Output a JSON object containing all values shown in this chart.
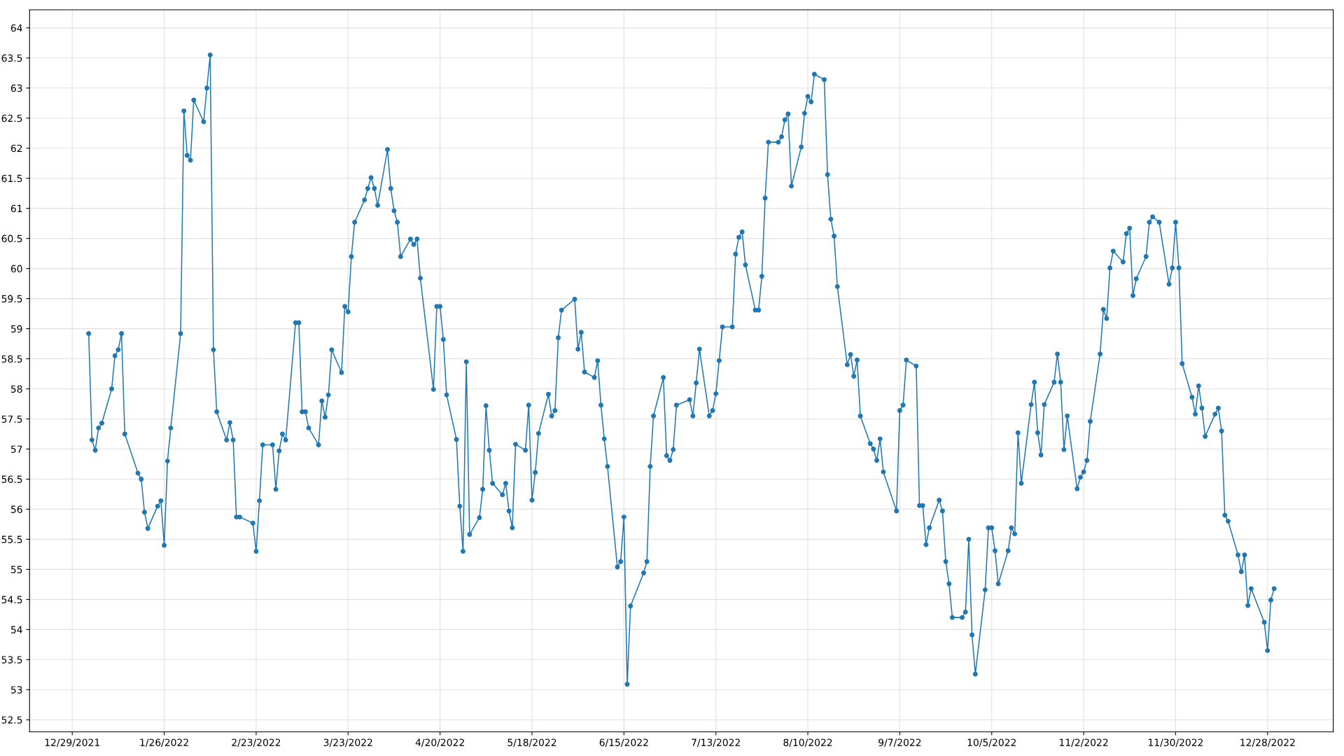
{
  "chart_data": {
    "type": "line",
    "xlim": [
      "2021-12-16",
      "2023-01-17"
    ],
    "ylim": [
      52.3,
      64.3
    ],
    "xticks": [
      {
        "value": "2021-12-29",
        "label": "12/29/2021"
      },
      {
        "value": "2022-01-26",
        "label": "1/26/2022"
      },
      {
        "value": "2022-02-23",
        "label": "2/23/2022"
      },
      {
        "value": "2022-03-23",
        "label": "3/23/2022"
      },
      {
        "value": "2022-04-20",
        "label": "4/20/2022"
      },
      {
        "value": "2022-05-18",
        "label": "5/18/2022"
      },
      {
        "value": "2022-06-15",
        "label": "6/15/2022"
      },
      {
        "value": "2022-07-13",
        "label": "7/13/2022"
      },
      {
        "value": "2022-08-10",
        "label": "8/10/2022"
      },
      {
        "value": "2022-09-07",
        "label": "9/7/2022"
      },
      {
        "value": "2022-10-05",
        "label": "10/5/2022"
      },
      {
        "value": "2022-11-02",
        "label": "11/2/2022"
      },
      {
        "value": "2022-11-30",
        "label": "11/30/2022"
      },
      {
        "value": "2022-12-28",
        "label": "12/28/2022"
      }
    ],
    "yticks": [
      52.5,
      53,
      53.5,
      54,
      54.5,
      55,
      55.5,
      56,
      56.5,
      57,
      57.5,
      58,
      58.5,
      59,
      59.5,
      60,
      60.5,
      61,
      61.5,
      62,
      62.5,
      63,
      63.5,
      64
    ],
    "grid": true,
    "marker": "circle",
    "line_style": "solid",
    "series": [
      {
        "color": "#1f77b4",
        "x": [
          "2022-01-03",
          "2022-01-04",
          "2022-01-05",
          "2022-01-06",
          "2022-01-07",
          "2022-01-10",
          "2022-01-11",
          "2022-01-12",
          "2022-01-13",
          "2022-01-14",
          "2022-01-18",
          "2022-01-19",
          "2022-01-20",
          "2022-01-21",
          "2022-01-24",
          "2022-01-25",
          "2022-01-26",
          "2022-01-27",
          "2022-01-28",
          "2022-01-31",
          "2022-02-01",
          "2022-02-02",
          "2022-02-03",
          "2022-02-04",
          "2022-02-07",
          "2022-02-08",
          "2022-02-09",
          "2022-02-10",
          "2022-02-11",
          "2022-02-14",
          "2022-02-15",
          "2022-02-16",
          "2022-02-17",
          "2022-02-18",
          "2022-02-22",
          "2022-02-23",
          "2022-02-24",
          "2022-02-25",
          "2022-02-28",
          "2022-03-01",
          "2022-03-02",
          "2022-03-03",
          "2022-03-04",
          "2022-03-07",
          "2022-03-08",
          "2022-03-09",
          "2022-03-10",
          "2022-03-11",
          "2022-03-14",
          "2022-03-15",
          "2022-03-16",
          "2022-03-17",
          "2022-03-18",
          "2022-03-21",
          "2022-03-22",
          "2022-03-23",
          "2022-03-24",
          "2022-03-25",
          "2022-03-28",
          "2022-03-29",
          "2022-03-30",
          "2022-03-31",
          "2022-04-01",
          "2022-04-04",
          "2022-04-05",
          "2022-04-06",
          "2022-04-07",
          "2022-04-08",
          "2022-04-11",
          "2022-04-12",
          "2022-04-13",
          "2022-04-14",
          "2022-04-18",
          "2022-04-19",
          "2022-04-20",
          "2022-04-21",
          "2022-04-22",
          "2022-04-25",
          "2022-04-26",
          "2022-04-27",
          "2022-04-28",
          "2022-04-29",
          "2022-05-02",
          "2022-05-03",
          "2022-05-04",
          "2022-05-05",
          "2022-05-06",
          "2022-05-09",
          "2022-05-10",
          "2022-05-11",
          "2022-05-12",
          "2022-05-13",
          "2022-05-16",
          "2022-05-17",
          "2022-05-18",
          "2022-05-19",
          "2022-05-20",
          "2022-05-23",
          "2022-05-24",
          "2022-05-25",
          "2022-05-26",
          "2022-05-27",
          "2022-05-31",
          "2022-06-01",
          "2022-06-02",
          "2022-06-03",
          "2022-06-06",
          "2022-06-07",
          "2022-06-08",
          "2022-06-09",
          "2022-06-10",
          "2022-06-13",
          "2022-06-14",
          "2022-06-15",
          "2022-06-16",
          "2022-06-17",
          "2022-06-21",
          "2022-06-22",
          "2022-06-23",
          "2022-06-24",
          "2022-06-27",
          "2022-06-28",
          "2022-06-29",
          "2022-06-30",
          "2022-07-01",
          "2022-07-05",
          "2022-07-06",
          "2022-07-07",
          "2022-07-08",
          "2022-07-11",
          "2022-07-12",
          "2022-07-13",
          "2022-07-14",
          "2022-07-15",
          "2022-07-18",
          "2022-07-19",
          "2022-07-20",
          "2022-07-21",
          "2022-07-22",
          "2022-07-25",
          "2022-07-26",
          "2022-07-27",
          "2022-07-28",
          "2022-07-29",
          "2022-08-01",
          "2022-08-02",
          "2022-08-03",
          "2022-08-04",
          "2022-08-05",
          "2022-08-08",
          "2022-08-09",
          "2022-08-10",
          "2022-08-11",
          "2022-08-12",
          "2022-08-15",
          "2022-08-16",
          "2022-08-17",
          "2022-08-18",
          "2022-08-19",
          "2022-08-22",
          "2022-08-23",
          "2022-08-24",
          "2022-08-25",
          "2022-08-26",
          "2022-08-29",
          "2022-08-30",
          "2022-08-31",
          "2022-09-01",
          "2022-09-02",
          "2022-09-06",
          "2022-09-07",
          "2022-09-08",
          "2022-09-09",
          "2022-09-12",
          "2022-09-13",
          "2022-09-14",
          "2022-09-15",
          "2022-09-16",
          "2022-09-19",
          "2022-09-20",
          "2022-09-21",
          "2022-09-22",
          "2022-09-23",
          "2022-09-26",
          "2022-09-27",
          "2022-09-28",
          "2022-09-29",
          "2022-09-30",
          "2022-10-03",
          "2022-10-04",
          "2022-10-05",
          "2022-10-06",
          "2022-10-07",
          "2022-10-10",
          "2022-10-11",
          "2022-10-12",
          "2022-10-13",
          "2022-10-14",
          "2022-10-17",
          "2022-10-18",
          "2022-10-19",
          "2022-10-20",
          "2022-10-21",
          "2022-10-24",
          "2022-10-25",
          "2022-10-26",
          "2022-10-27",
          "2022-10-28",
          "2022-10-31",
          "2022-11-01",
          "2022-11-02",
          "2022-11-03",
          "2022-11-04",
          "2022-11-07",
          "2022-11-08",
          "2022-11-09",
          "2022-11-10",
          "2022-11-11",
          "2022-11-14",
          "2022-11-15",
          "2022-11-16",
          "2022-11-17",
          "2022-11-18",
          "2022-11-21",
          "2022-11-22",
          "2022-11-23",
          "2022-11-25",
          "2022-11-28",
          "2022-11-29",
          "2022-11-30",
          "2022-12-01",
          "2022-12-02",
          "2022-12-05",
          "2022-12-06",
          "2022-12-07",
          "2022-12-08",
          "2022-12-09",
          "2022-12-12",
          "2022-12-13",
          "2022-12-14",
          "2022-12-15",
          "2022-12-16",
          "2022-12-19",
          "2022-12-20",
          "2022-12-21",
          "2022-12-22",
          "2022-12-23",
          "2022-12-27",
          "2022-12-28",
          "2022-12-29",
          "2022-12-30"
        ],
        "values": [
          58.92,
          57.15,
          56.98,
          57.35,
          57.43,
          58.0,
          58.55,
          58.65,
          58.92,
          57.25,
          56.6,
          56.5,
          55.95,
          55.68,
          56.05,
          56.14,
          55.4,
          56.8,
          57.35,
          58.92,
          62.62,
          61.88,
          61.8,
          62.8,
          62.44,
          63.0,
          63.55,
          58.65,
          57.62,
          57.15,
          57.44,
          57.15,
          55.87,
          55.87,
          55.77,
          55.3,
          56.14,
          57.07,
          57.07,
          56.33,
          56.97,
          57.25,
          57.15,
          59.1,
          59.1,
          57.62,
          57.62,
          57.35,
          57.07,
          57.8,
          57.53,
          57.9,
          58.65,
          58.27,
          59.37,
          59.28,
          60.2,
          60.77,
          61.14,
          61.33,
          61.51,
          61.33,
          61.05,
          61.98,
          61.33,
          60.96,
          60.77,
          60.2,
          60.49,
          60.4,
          60.49,
          59.84,
          57.99,
          59.37,
          59.37,
          58.82,
          57.9,
          57.16,
          56.05,
          55.3,
          58.45,
          55.58,
          55.86,
          56.33,
          57.72,
          56.98,
          56.43,
          56.24,
          56.43,
          55.97,
          55.69,
          57.08,
          56.98,
          57.73,
          56.15,
          56.61,
          57.26,
          57.91,
          57.55,
          57.64,
          58.85,
          59.31,
          59.49,
          58.66,
          58.94,
          58.28,
          58.19,
          58.47,
          57.73,
          57.17,
          56.71,
          55.04,
          55.13,
          55.87,
          53.09,
          54.39,
          54.94,
          55.13,
          56.71,
          57.55,
          58.19,
          56.89,
          56.81,
          56.99,
          57.73,
          57.82,
          57.55,
          58.1,
          58.66,
          57.55,
          57.64,
          57.92,
          58.47,
          59.03,
          59.03,
          60.24,
          60.52,
          60.61,
          60.06,
          59.31,
          59.31,
          59.87,
          61.17,
          62.1,
          62.1,
          62.19,
          62.47,
          62.57,
          61.37,
          62.02,
          62.58,
          62.86,
          62.77,
          63.23,
          63.14,
          61.56,
          60.82,
          60.54,
          59.7,
          58.4,
          58.57,
          58.21,
          58.48,
          57.55,
          57.09,
          57.0,
          56.81,
          57.17,
          56.62,
          55.97,
          57.64,
          57.73,
          58.48,
          58.38,
          56.06,
          56.06,
          55.41,
          55.69,
          56.15,
          55.97,
          55.13,
          54.76,
          54.2,
          54.2,
          54.29,
          55.5,
          53.91,
          53.26,
          54.66,
          55.69,
          55.69,
          55.31,
          54.76,
          55.31,
          55.69,
          55.59,
          57.27,
          56.43,
          57.74,
          58.11,
          57.27,
          56.9,
          57.74,
          58.11,
          58.58,
          58.11,
          56.99,
          57.55,
          56.34,
          56.53,
          56.62,
          56.81,
          57.46,
          58.58,
          59.32,
          59.17,
          60.01,
          60.29,
          60.11,
          60.58,
          60.67,
          59.55,
          59.83,
          60.2,
          60.77,
          60.86,
          60.77,
          59.74,
          60.01,
          60.77,
          60.01,
          58.42,
          57.86,
          57.58,
          58.05,
          57.68,
          57.21,
          57.58,
          57.68,
          57.3,
          55.9,
          55.8,
          55.24,
          54.96,
          55.24,
          54.4,
          54.68,
          54.12,
          53.65,
          54.49,
          54.68
        ]
      }
    ]
  }
}
